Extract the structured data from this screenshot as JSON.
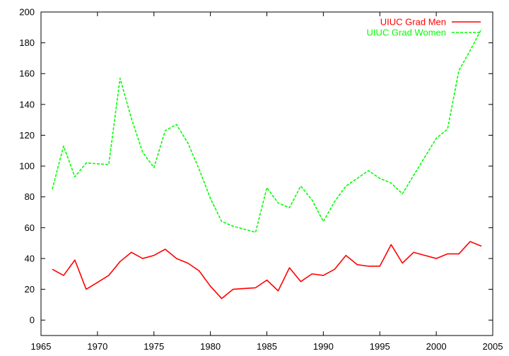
{
  "chart_data": {
    "type": "line",
    "x": [
      1966,
      1967,
      1968,
      1969,
      1970,
      1971,
      1972,
      1973,
      1974,
      1975,
      1976,
      1977,
      1978,
      1979,
      1980,
      1981,
      1982,
      1983,
      1984,
      1985,
      1986,
      1987,
      1988,
      1989,
      1990,
      1991,
      1992,
      1993,
      1994,
      1995,
      1996,
      1997,
      1998,
      1999,
      2000,
      2001,
      2002,
      2003,
      2004
    ],
    "series": [
      {
        "name": "UIUC Grad Men",
        "color": "#ff0000",
        "dash": "solid",
        "values": [
          33,
          29,
          39,
          20,
          24.5,
          29,
          38,
          44,
          40,
          42,
          46,
          40,
          37,
          32,
          22,
          14,
          20,
          20.5,
          21,
          26,
          19,
          34,
          25,
          30,
          29,
          33,
          42,
          36,
          35,
          35,
          49,
          37,
          44,
          42,
          40,
          43,
          43,
          51,
          48
        ]
      },
      {
        "name": "UIUC Grad Women",
        "color": "#00ff00",
        "dash": "dashed",
        "values": [
          85,
          113,
          93,
          102,
          101.5,
          101,
          157,
          131,
          109,
          99,
          123,
          127,
          115,
          98,
          79,
          64,
          61,
          59,
          57,
          86,
          76,
          73,
          87,
          78,
          64,
          77,
          87,
          92,
          97,
          92,
          89,
          82,
          94,
          106,
          118,
          124,
          162,
          175,
          189
        ]
      }
    ],
    "xlim": [
      1965,
      2005
    ],
    "ylim": [
      -10,
      200
    ],
    "xticks": [
      "1965",
      "1970",
      "1975",
      "1980",
      "1985",
      "1990",
      "1995",
      "2000",
      "2005"
    ],
    "yticks": [
      "0",
      "20",
      "40",
      "60",
      "80",
      "100",
      "120",
      "140",
      "160",
      "180",
      "200"
    ],
    "title": "",
    "xlabel": "",
    "ylabel": "",
    "grid": false,
    "legend_position": "top-right"
  }
}
